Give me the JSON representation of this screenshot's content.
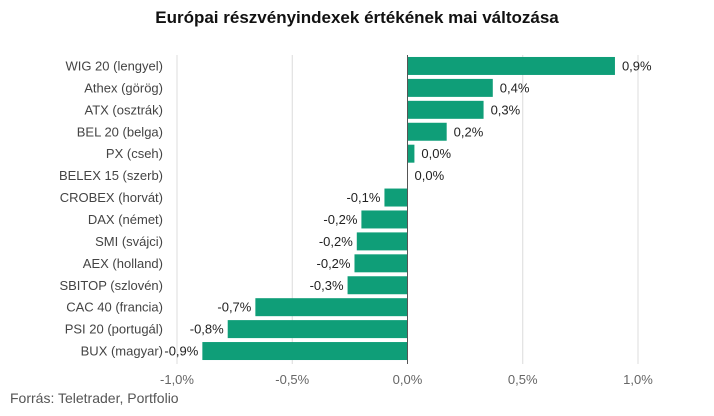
{
  "chart_data": {
    "type": "bar",
    "orientation": "horizontal",
    "title": "Európai részvényindexek értékének mai változása",
    "categories": [
      "WIG 20 (lengyel)",
      "Athex (görög)",
      "ATX (osztrák)",
      "BEL 20 (belga)",
      "PX (cseh)",
      "BELEX 15 (szerb)",
      "CROBEX (horvát)",
      "DAX (német)",
      "SMI (svájci)",
      "AEX (holland)",
      "SBITOP (szlovén)",
      "CAC 40 (francia)",
      "PSI 20 (portugál)",
      "BUX (magyar)"
    ],
    "values": [
      0.9,
      0.37,
      0.33,
      0.17,
      0.03,
      0.0,
      -0.1,
      -0.2,
      -0.22,
      -0.23,
      -0.26,
      -0.66,
      -0.78,
      -0.89
    ],
    "value_labels": [
      "0,9%",
      "0,4%",
      "0,3%",
      "0,2%",
      "0,0%",
      "0,0%",
      "-0,1%",
      "-0,2%",
      "-0,2%",
      "-0,2%",
      "-0,3%",
      "-0,7%",
      "-0,8%",
      "-0,9%"
    ],
    "xlim": [
      -1.0,
      1.0
    ],
    "x_ticks": [
      -1.0,
      -0.5,
      0.0,
      0.5,
      1.0
    ],
    "x_tick_labels": [
      "-1,0%",
      "-0,5%",
      "0,0%",
      "0,5%",
      "1,0%"
    ],
    "grid": true,
    "legend": "none",
    "bar_color": "#0f9e78",
    "source": "Forrás: Teletrader, Portfolio"
  }
}
